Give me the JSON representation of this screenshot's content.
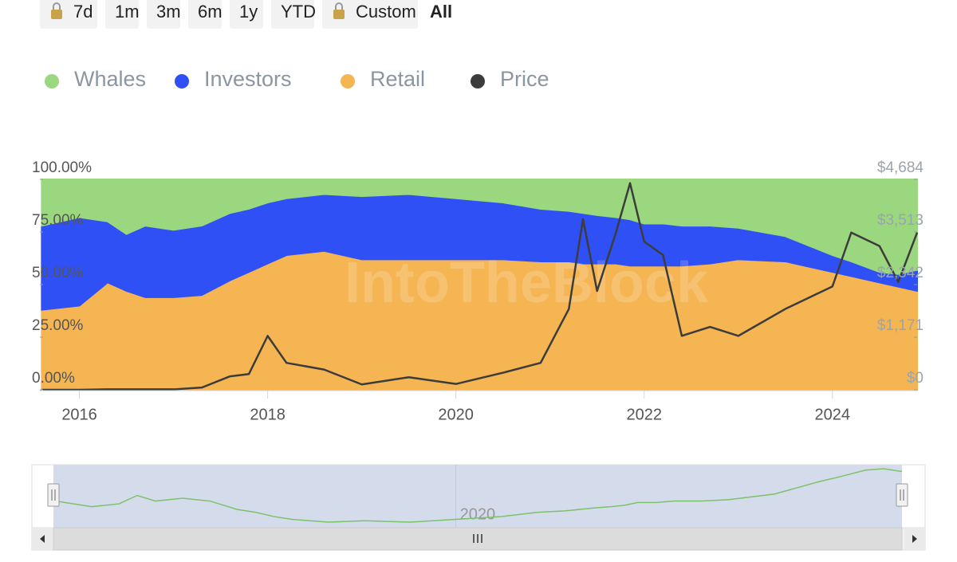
{
  "range_buttons": [
    {
      "label": "7d",
      "locked": true
    },
    {
      "label": "1m"
    },
    {
      "label": "3m"
    },
    {
      "label": "6m"
    },
    {
      "label": "1y"
    },
    {
      "label": "YTD"
    },
    {
      "label": "Custom",
      "locked": true
    },
    {
      "label": "All",
      "selected": true
    }
  ],
  "chart_data": {
    "type": "stacked_area",
    "watermark": "IntoTheBlock",
    "x": [
      2015.6,
      2016.0,
      2016.3,
      2016.5,
      2016.7,
      2017.0,
      2017.3,
      2017.6,
      2017.8,
      2018.0,
      2018.2,
      2018.6,
      2019.0,
      2019.5,
      2020.0,
      2020.5,
      2020.9,
      2021.2,
      2021.35,
      2021.5,
      2021.7,
      2021.85,
      2022.0,
      2022.2,
      2022.4,
      2022.7,
      2023.0,
      2023.5,
      2024.0,
      2024.2,
      2024.5,
      2024.7,
      2024.9
    ],
    "xlim": [
      2015.58,
      2024.9
    ],
    "xticks": [
      2016,
      2018,
      2020,
      2022,
      2024
    ],
    "ylim": [
      0,
      100
    ],
    "yticks": [
      {
        "value": 0,
        "label": "0.00%"
      },
      {
        "value": 25,
        "label": "25.00%"
      },
      {
        "value": 50,
        "label": "50.00%"
      },
      {
        "value": 75,
        "label": "75.00%"
      },
      {
        "value": 100,
        "label": "100.00%"
      }
    ],
    "y2lim": [
      0,
      4684
    ],
    "y2ticks": [
      {
        "value": 0,
        "label": "$0"
      },
      {
        "value": 1171,
        "label": "$1,171"
      },
      {
        "value": 2342,
        "label": "$2,342"
      },
      {
        "value": 3513,
        "label": "$3,513"
      },
      {
        "value": 4684,
        "label": "$4,684"
      }
    ],
    "series": [
      {
        "name": "Whales",
        "color": "#9bd77f",
        "values": [
          22,
          18,
          20,
          26,
          22,
          24,
          22,
          16,
          14,
          11,
          9,
          7,
          8,
          7,
          9,
          11,
          14,
          15,
          16,
          17,
          18,
          19,
          21,
          21,
          22,
          22,
          23,
          27,
          36,
          39,
          44,
          45,
          43
        ]
      },
      {
        "name": "Investors",
        "color": "#2f50f5",
        "values": [
          40,
          42,
          29,
          27,
          34,
          32,
          33,
          32,
          30,
          29,
          27,
          27,
          30,
          31,
          29,
          27,
          25,
          24,
          24,
          23,
          22,
          22,
          20,
          20,
          19,
          18,
          15,
          12,
          8,
          7,
          5,
          6,
          10
        ]
      },
      {
        "name": "Retail",
        "color": "#f5b552",
        "values": [
          38,
          40,
          51,
          47,
          44,
          44,
          45,
          52,
          56,
          60,
          64,
          66,
          62,
          62,
          62,
          62,
          61,
          61,
          60,
          60,
          60,
          59,
          59,
          59,
          59,
          60,
          62,
          61,
          56,
          54,
          51,
          49,
          47
        ]
      },
      {
        "name": "Price",
        "color": "#3c3c3c",
        "axis": "y2",
        "values": [
          1,
          1,
          10,
          12,
          10,
          10,
          50,
          300,
          350,
          1200,
          600,
          450,
          120,
          280,
          130,
          380,
          600,
          1800,
          3800,
          2200,
          3500,
          4600,
          3300,
          3000,
          1200,
          1400,
          1200,
          1800,
          2300,
          3500,
          3200,
          2400,
          3500
        ]
      }
    ],
    "navigator_xticks": [
      2020
    ]
  }
}
